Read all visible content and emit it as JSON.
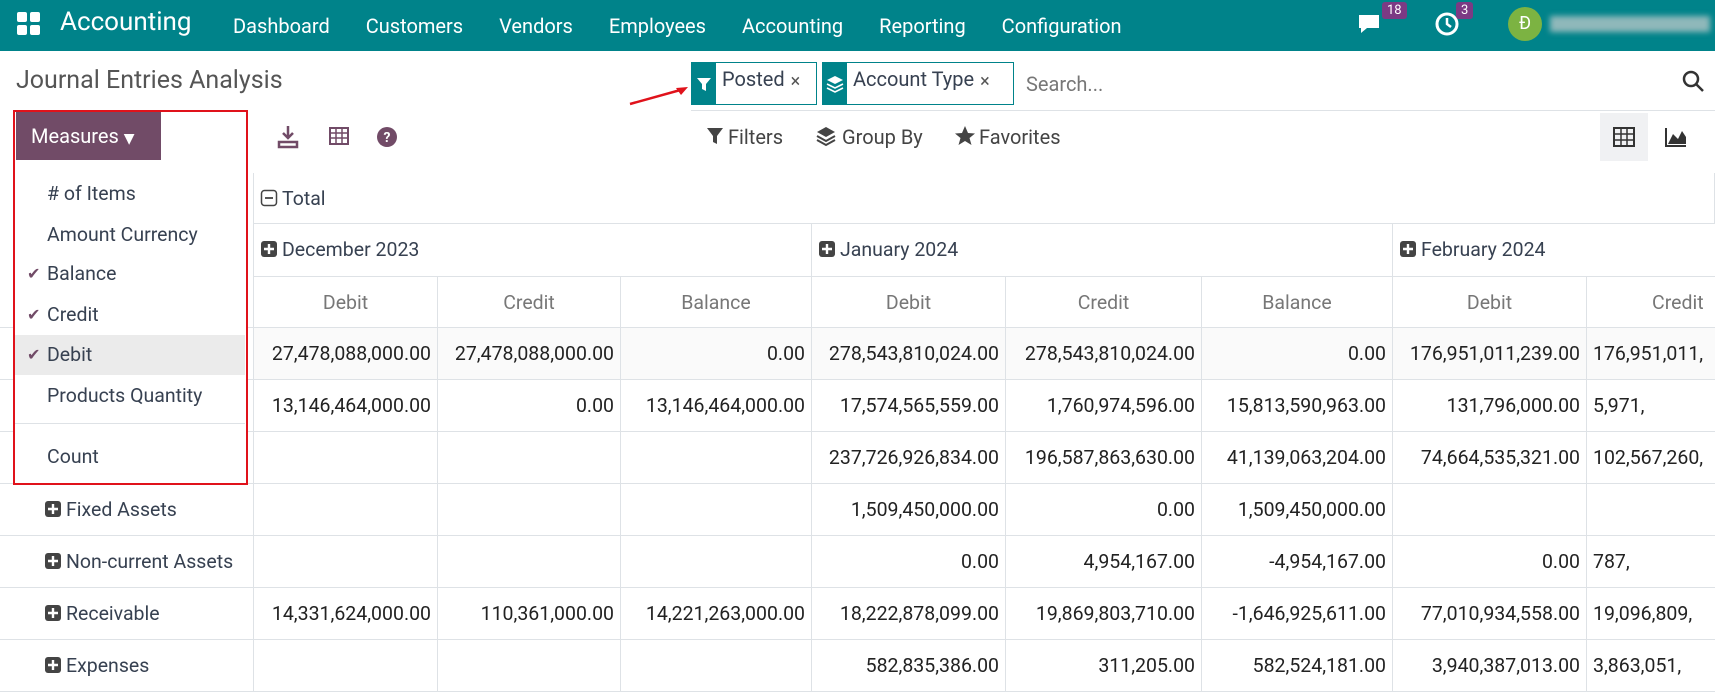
{
  "navbar": {
    "app": "Accounting",
    "menu": [
      "Dashboard",
      "Customers",
      "Vendors",
      "Employees",
      "Accounting",
      "Reporting",
      "Configuration"
    ],
    "messages_badge": "18",
    "activities_badge": "3",
    "avatar": "Đ"
  },
  "title": "Journal Entries Analysis",
  "search": {
    "facets": [
      "Posted",
      "Account Type"
    ],
    "placeholder": "Search..."
  },
  "toolbar": {
    "measures": "Measures",
    "filters": "Filters",
    "group_by": "Group By",
    "favorites": "Favorites"
  },
  "measures_menu": {
    "items": [
      {
        "label": "# of Items",
        "checked": false
      },
      {
        "label": "Amount Currency",
        "checked": false
      },
      {
        "label": "Balance",
        "checked": true
      },
      {
        "label": "Credit",
        "checked": true
      },
      {
        "label": "Debit",
        "checked": true
      },
      {
        "label": "Products Quantity",
        "checked": false
      }
    ],
    "count": "Count"
  },
  "pivot": {
    "total": "Total",
    "months": [
      "December 2023",
      "January 2024",
      "February 2024"
    ],
    "measures": [
      "Debit",
      "Credit",
      "Balance",
      "Debit",
      "Credit",
      "Balance",
      "Debit",
      "Credit"
    ],
    "rows": [
      {
        "label": null,
        "cells": [
          "27,478,088,000.00",
          "27,478,088,000.00",
          "0.00",
          "278,543,810,024.00",
          "278,543,810,024.00",
          "0.00",
          "176,951,011,239.00",
          "176,951,011,"
        ]
      },
      {
        "label": null,
        "cells": [
          "13,146,464,000.00",
          "0.00",
          "13,146,464,000.00",
          "17,574,565,559.00",
          "1,760,974,596.00",
          "15,813,590,963.00",
          "131,796,000.00",
          "5,971,"
        ]
      },
      {
        "label": null,
        "cells": [
          null,
          null,
          null,
          "237,726,926,834.00",
          "196,587,863,630.00",
          "41,139,063,204.00",
          "74,664,535,321.00",
          "102,567,260,"
        ]
      },
      {
        "label": "Fixed Assets",
        "cells": [
          null,
          null,
          null,
          "1,509,450,000.00",
          "0.00",
          "1,509,450,000.00",
          null,
          null
        ]
      },
      {
        "label": "Non-current Assets",
        "cells": [
          null,
          null,
          null,
          "0.00",
          "4,954,167.00",
          "-4,954,167.00",
          "0.00",
          "787,"
        ]
      },
      {
        "label": "Receivable",
        "cells": [
          "14,331,624,000.00",
          "110,361,000.00",
          "14,221,263,000.00",
          "18,222,878,099.00",
          "19,869,803,710.00",
          "-1,646,925,611.00",
          "77,010,934,558.00",
          "19,096,809,"
        ]
      },
      {
        "label": "Expenses",
        "cells": [
          null,
          null,
          null,
          "582,835,386.00",
          "311,205.00",
          "582,524,181.00",
          "3,940,387,013.00",
          "3,863,051,"
        ]
      }
    ]
  }
}
